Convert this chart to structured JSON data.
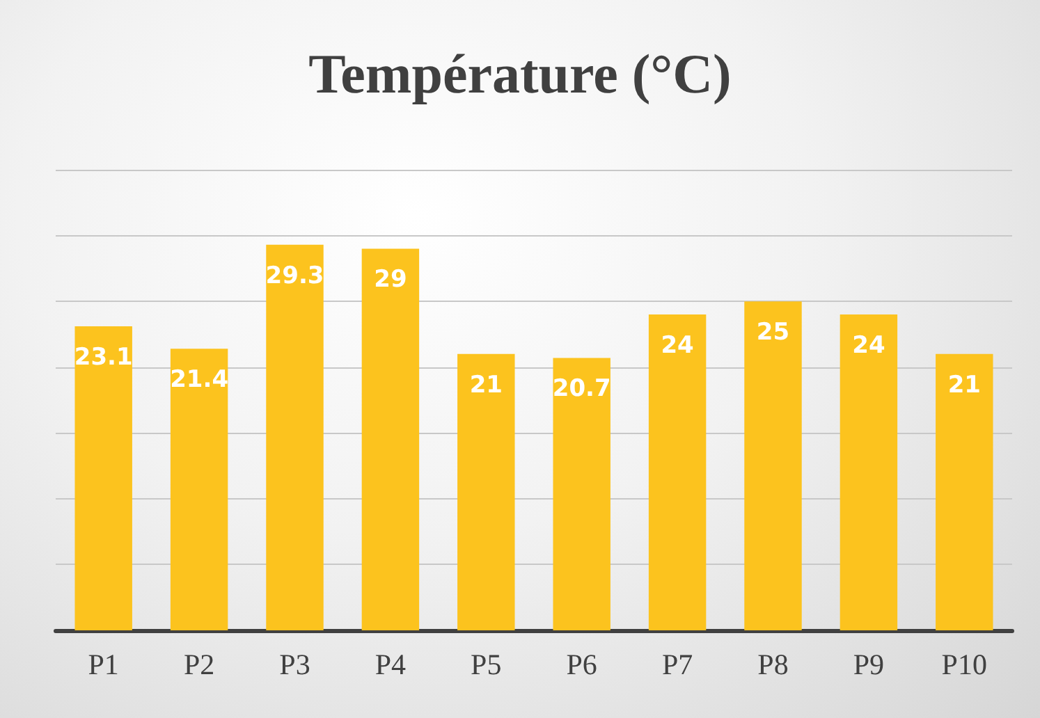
{
  "chart_data": {
    "type": "bar",
    "title": "Température (°C)",
    "categories": [
      "P1",
      "P2",
      "P3",
      "P4",
      "P5",
      "P6",
      "P7",
      "P8",
      "P9",
      "P10"
    ],
    "values": [
      23.1,
      21.4,
      29.3,
      29,
      21,
      20.7,
      24,
      25,
      24,
      21
    ],
    "color": "#fcc31e",
    "ylim": [
      0,
      35
    ],
    "yticks": [
      {
        "value": 0,
        "label": null
      },
      {
        "value": 5,
        "label": null
      },
      {
        "value": 10,
        "label": null
      },
      {
        "value": 15,
        "label": null
      },
      {
        "value": 20,
        "label": null
      },
      {
        "value": 25,
        "label": null
      },
      {
        "value": 30,
        "label": null
      },
      {
        "value": 35,
        "label": null
      }
    ],
    "grid": "y",
    "tick_labels": "x",
    "data_labels": true
  }
}
